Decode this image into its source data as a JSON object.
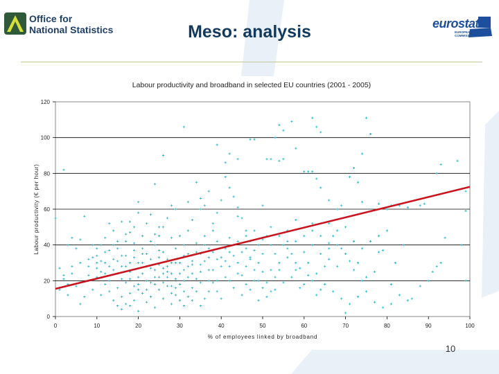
{
  "header": {
    "org_line1": "Office for",
    "org_line2": "National Statistics",
    "title": "Meso: analysis",
    "eurostat_name": "eurostat",
    "eurostat_tagline": "EUROPEAN COMMISSION"
  },
  "chart_data": {
    "type": "scatter",
    "title": "Labour productivity and broadband in selected EU countries (2001 - 2005)",
    "xlabel": "% of employees linked by broadband",
    "ylabel": "Labour productivity (€ per hour)",
    "xlim": [
      0,
      100
    ],
    "ylim": [
      0,
      120
    ],
    "xticks": [
      0,
      10,
      20,
      30,
      40,
      50,
      60,
      70,
      80,
      90,
      100
    ],
    "yticks": [
      0,
      20,
      40,
      60,
      80,
      100,
      120
    ],
    "grid": "horizontal",
    "legend": "none",
    "colors": {
      "points": "#2ab8cf",
      "trendline": "#c8141e"
    },
    "trendline": {
      "x": [
        0,
        100
      ],
      "y": [
        15.5,
        72.5
      ]
    },
    "points": [
      [
        2,
        82
      ],
      [
        31,
        106
      ],
      [
        54,
        107
      ],
      [
        57,
        109
      ],
      [
        62,
        111
      ],
      [
        63,
        106
      ],
      [
        64,
        103
      ],
      [
        75,
        111
      ],
      [
        76,
        102
      ],
      [
        55,
        104
      ],
      [
        39,
        96
      ],
      [
        47,
        99
      ],
      [
        48,
        99
      ],
      [
        53,
        100
      ],
      [
        58,
        94
      ],
      [
        41,
        86
      ],
      [
        42,
        91
      ],
      [
        44,
        88
      ],
      [
        51,
        88
      ],
      [
        52,
        88
      ],
      [
        54,
        87
      ],
      [
        55,
        88
      ],
      [
        26,
        90
      ],
      [
        74,
        91
      ],
      [
        72,
        83
      ],
      [
        71,
        78
      ],
      [
        60,
        81
      ],
      [
        61,
        81
      ],
      [
        62,
        81
      ],
      [
        63,
        77
      ],
      [
        64,
        72
      ],
      [
        66,
        65
      ],
      [
        68,
        60
      ],
      [
        69,
        62
      ],
      [
        73,
        75
      ],
      [
        74,
        64
      ],
      [
        78,
        63
      ],
      [
        80,
        60
      ],
      [
        81,
        62
      ],
      [
        83,
        62
      ],
      [
        85,
        61
      ],
      [
        88,
        62
      ],
      [
        89,
        63
      ],
      [
        92,
        80
      ],
      [
        93,
        85
      ],
      [
        97,
        87
      ],
      [
        99,
        70
      ],
      [
        99,
        59
      ],
      [
        98,
        40
      ],
      [
        99,
        20
      ],
      [
        94,
        44
      ],
      [
        93,
        30
      ],
      [
        92,
        28
      ],
      [
        91,
        25
      ],
      [
        90,
        20
      ],
      [
        88,
        17
      ],
      [
        86,
        10
      ],
      [
        85,
        9
      ],
      [
        83,
        12
      ],
      [
        81,
        18
      ],
      [
        82,
        30
      ],
      [
        84,
        40
      ],
      [
        79,
        37
      ],
      [
        78,
        36
      ],
      [
        77,
        25
      ],
      [
        75,
        22
      ],
      [
        74,
        20
      ],
      [
        73,
        30
      ],
      [
        72,
        26
      ],
      [
        71,
        31
      ],
      [
        70,
        35
      ],
      [
        69,
        38
      ],
      [
        68,
        40
      ],
      [
        67,
        45
      ],
      [
        66,
        32
      ],
      [
        65,
        28
      ],
      [
        64,
        15
      ],
      [
        63,
        12
      ],
      [
        62,
        20
      ],
      [
        61,
        23
      ],
      [
        60,
        18
      ],
      [
        59,
        16
      ],
      [
        58,
        30
      ],
      [
        57,
        35
      ],
      [
        56,
        42
      ],
      [
        55,
        40
      ],
      [
        54,
        26
      ],
      [
        53,
        22
      ],
      [
        52,
        14
      ],
      [
        51,
        19
      ],
      [
        50,
        25
      ],
      [
        49,
        30
      ],
      [
        48,
        37
      ],
      [
        47,
        42
      ],
      [
        46,
        48
      ],
      [
        45,
        55
      ],
      [
        44,
        61
      ],
      [
        43,
        67
      ],
      [
        42,
        72
      ],
      [
        41,
        78
      ],
      [
        40,
        65
      ],
      [
        39,
        58
      ],
      [
        38,
        52
      ],
      [
        37,
        70
      ],
      [
        36,
        62
      ],
      [
        35,
        66
      ],
      [
        34,
        75
      ],
      [
        33,
        54
      ],
      [
        32,
        48
      ],
      [
        31,
        40
      ],
      [
        30,
        45
      ],
      [
        29,
        60
      ],
      [
        28,
        62
      ],
      [
        27,
        55
      ],
      [
        26,
        50
      ],
      [
        25,
        45
      ],
      [
        24,
        74
      ],
      [
        23,
        57
      ],
      [
        22,
        52
      ],
      [
        21,
        45
      ],
      [
        20,
        58
      ],
      [
        19,
        50
      ],
      [
        18,
        47
      ],
      [
        17,
        42
      ],
      [
        16,
        53
      ],
      [
        15,
        38
      ],
      [
        14,
        48
      ],
      [
        13,
        52
      ],
      [
        12,
        44
      ],
      [
        11,
        40
      ],
      [
        10,
        38
      ],
      [
        9,
        33
      ],
      [
        8,
        28
      ],
      [
        7,
        56
      ],
      [
        6,
        43
      ],
      [
        5,
        38
      ],
      [
        4,
        44
      ],
      [
        3,
        40
      ],
      [
        2,
        23
      ],
      [
        1,
        27
      ],
      [
        0,
        55
      ],
      [
        3,
        12
      ],
      [
        5,
        17
      ],
      [
        8,
        20
      ],
      [
        10,
        22
      ],
      [
        12,
        18
      ],
      [
        13,
        14
      ],
      [
        14,
        9
      ],
      [
        15,
        6
      ],
      [
        16,
        11
      ],
      [
        17,
        7
      ],
      [
        18,
        13
      ],
      [
        19,
        9
      ],
      [
        20,
        15
      ],
      [
        21,
        24
      ],
      [
        22,
        28
      ],
      [
        23,
        19
      ],
      [
        24,
        26
      ],
      [
        25,
        33
      ],
      [
        26,
        27
      ],
      [
        27,
        22
      ],
      [
        28,
        17
      ],
      [
        29,
        12
      ],
      [
        30,
        9
      ],
      [
        31,
        6
      ],
      [
        32,
        11
      ],
      [
        33,
        16
      ],
      [
        34,
        21
      ],
      [
        35,
        25
      ],
      [
        36,
        31
      ],
      [
        37,
        26
      ],
      [
        38,
        19
      ],
      [
        39,
        14
      ],
      [
        40,
        10
      ],
      [
        41,
        22
      ],
      [
        42,
        28
      ],
      [
        43,
        34
      ],
      [
        44,
        30
      ],
      [
        45,
        23
      ],
      [
        46,
        18
      ],
      [
        47,
        32
      ],
      [
        48,
        26
      ],
      [
        49,
        20
      ],
      [
        50,
        35
      ],
      [
        36,
        40
      ],
      [
        34,
        36
      ],
      [
        32,
        28
      ],
      [
        30,
        24
      ],
      [
        28,
        30
      ],
      [
        26,
        36
      ],
      [
        24,
        40
      ],
      [
        22,
        35
      ],
      [
        20,
        30
      ],
      [
        18,
        25
      ],
      [
        16,
        21
      ],
      [
        14,
        26
      ],
      [
        12,
        30
      ],
      [
        10,
        27
      ],
      [
        8,
        23
      ],
      [
        6,
        19
      ],
      [
        4,
        24
      ],
      [
        2,
        21
      ],
      [
        11,
        12
      ],
      [
        13,
        20
      ],
      [
        15,
        24
      ],
      [
        17,
        28
      ],
      [
        19,
        33
      ],
      [
        21,
        38
      ],
      [
        23,
        42
      ],
      [
        25,
        37
      ],
      [
        27,
        32
      ],
      [
        29,
        38
      ],
      [
        31,
        34
      ],
      [
        33,
        29
      ],
      [
        35,
        19
      ],
      [
        37,
        14
      ],
      [
        39,
        20
      ],
      [
        41,
        31
      ],
      [
        43,
        16
      ],
      [
        45,
        12
      ],
      [
        47,
        15
      ],
      [
        49,
        9
      ],
      [
        51,
        11
      ],
      [
        53,
        15
      ],
      [
        55,
        19
      ],
      [
        57,
        22
      ],
      [
        59,
        27
      ],
      [
        61,
        30
      ],
      [
        63,
        24
      ],
      [
        65,
        18
      ],
      [
        67,
        14
      ],
      [
        69,
        10
      ],
      [
        71,
        7
      ],
      [
        73,
        11
      ],
      [
        75,
        14
      ],
      [
        77,
        8
      ],
      [
        79,
        5
      ],
      [
        81,
        7
      ],
      [
        70,
        2
      ],
      [
        9,
        15
      ],
      [
        7,
        11
      ],
      [
        6,
        7
      ],
      [
        16,
        4
      ],
      [
        18,
        6
      ],
      [
        20,
        3
      ],
      [
        22,
        8
      ],
      [
        24,
        5
      ],
      [
        26,
        10
      ],
      [
        28,
        7
      ],
      [
        10,
        34
      ],
      [
        12,
        36
      ],
      [
        14,
        32
      ],
      [
        16,
        34
      ],
      [
        18,
        30
      ],
      [
        20,
        22
      ],
      [
        22,
        20
      ],
      [
        24,
        18
      ],
      [
        26,
        24
      ],
      [
        28,
        24
      ],
      [
        30,
        18
      ],
      [
        32,
        22
      ],
      [
        34,
        14
      ],
      [
        36,
        10
      ],
      [
        38,
        26
      ],
      [
        40,
        28
      ],
      [
        42,
        20
      ],
      [
        44,
        24
      ],
      [
        46,
        28
      ],
      [
        48,
        20
      ],
      [
        50,
        16
      ],
      [
        52,
        26
      ],
      [
        54,
        30
      ],
      [
        56,
        33
      ],
      [
        58,
        26
      ],
      [
        60,
        36
      ],
      [
        62,
        40
      ],
      [
        64,
        35
      ],
      [
        66,
        38
      ],
      [
        68,
        28
      ],
      [
        15,
        16
      ],
      [
        17,
        19
      ],
      [
        19,
        17
      ],
      [
        21,
        13
      ],
      [
        23,
        11
      ],
      [
        25,
        15
      ],
      [
        27,
        17
      ],
      [
        29,
        21
      ],
      [
        31,
        26
      ],
      [
        33,
        31
      ],
      [
        35,
        35
      ],
      [
        37,
        38
      ],
      [
        39,
        42
      ],
      [
        41,
        38
      ],
      [
        43,
        40
      ],
      [
        45,
        36
      ],
      [
        47,
        33
      ],
      [
        49,
        40
      ],
      [
        51,
        45
      ],
      [
        53,
        35
      ],
      [
        11,
        25
      ],
      [
        13,
        28
      ],
      [
        15,
        31
      ],
      [
        17,
        34
      ],
      [
        19,
        37
      ],
      [
        21,
        30
      ],
      [
        23,
        27
      ],
      [
        25,
        22
      ],
      [
        27,
        28
      ],
      [
        29,
        30
      ],
      [
        31,
        14
      ],
      [
        33,
        9
      ],
      [
        35,
        6
      ],
      [
        37,
        20
      ],
      [
        39,
        32
      ],
      [
        9,
        40
      ],
      [
        11,
        31
      ],
      [
        13,
        37
      ],
      [
        15,
        42
      ],
      [
        17,
        46
      ],
      [
        19,
        41
      ],
      [
        21,
        35
      ],
      [
        23,
        32
      ],
      [
        25,
        29
      ],
      [
        27,
        25
      ],
      [
        29,
        16
      ],
      [
        31,
        20
      ],
      [
        33,
        24
      ],
      [
        35,
        29
      ],
      [
        37,
        33
      ],
      [
        20,
        64
      ],
      [
        25,
        50
      ],
      [
        38,
        48
      ],
      [
        42,
        44
      ],
      [
        46,
        38
      ],
      [
        52,
        40
      ],
      [
        56,
        48
      ],
      [
        58,
        54
      ],
      [
        62,
        48
      ],
      [
        66,
        52
      ],
      [
        44,
        56
      ],
      [
        50,
        62
      ],
      [
        35,
        60
      ],
      [
        32,
        64
      ],
      [
        28,
        44
      ],
      [
        24,
        46
      ],
      [
        18,
        53
      ],
      [
        14,
        40
      ],
      [
        12,
        24
      ],
      [
        10,
        30
      ],
      [
        8,
        32
      ],
      [
        6,
        30
      ],
      [
        4,
        28
      ],
      [
        3,
        18
      ],
      [
        1,
        15
      ],
      [
        16,
        28
      ],
      [
        18,
        21
      ],
      [
        20,
        18
      ],
      [
        22,
        15
      ],
      [
        24,
        22
      ],
      [
        26,
        19
      ],
      [
        28,
        13
      ],
      [
        30,
        30
      ],
      [
        32,
        35
      ],
      [
        34,
        41
      ],
      [
        36,
        45
      ],
      [
        38,
        36
      ],
      [
        40,
        33
      ],
      [
        42,
        36
      ],
      [
        44,
        42
      ],
      [
        46,
        45
      ],
      [
        48,
        48
      ],
      [
        50,
        43
      ],
      [
        52,
        50
      ],
      [
        54,
        45
      ],
      [
        56,
        38
      ],
      [
        58,
        42
      ],
      [
        60,
        45
      ],
      [
        62,
        52
      ],
      [
        64,
        45
      ],
      [
        66,
        41
      ],
      [
        68,
        48
      ],
      [
        70,
        50
      ],
      [
        72,
        42
      ],
      [
        74,
        38
      ],
      [
        76,
        42
      ],
      [
        78,
        45
      ],
      [
        80,
        48
      ]
    ]
  },
  "page_number": "10"
}
